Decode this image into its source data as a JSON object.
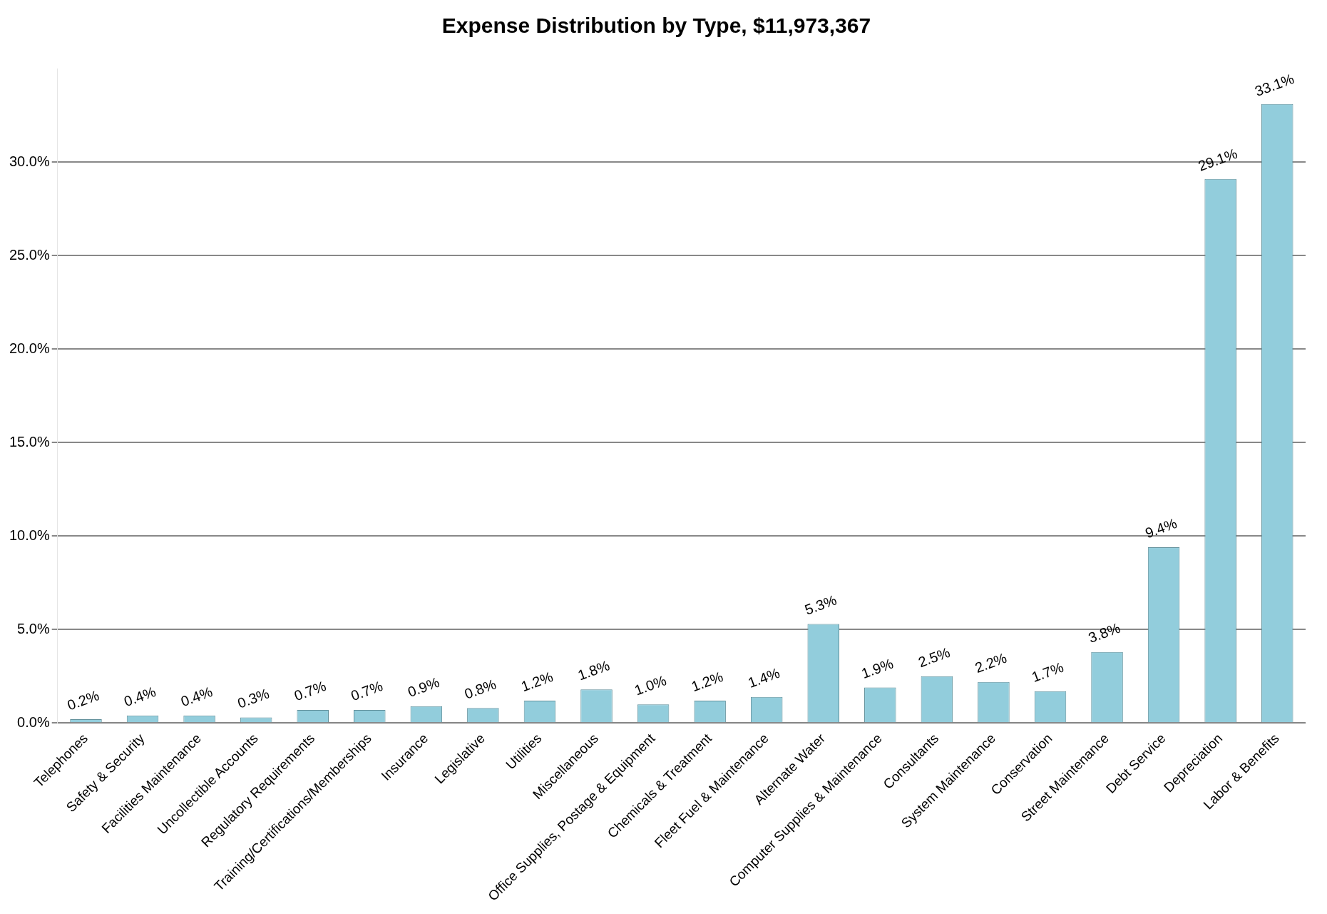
{
  "chart_data": {
    "type": "bar",
    "title": "Expense Distribution by Type, $11,973,367",
    "categories": [
      "Telephones",
      "Safety & Security",
      "Facilities Maintenance",
      "Uncollectible Accounts",
      "Regulatory Requirements",
      "Training/Certifications/Memberships",
      "Insurance",
      "Legislative",
      "Utilities",
      "Miscellaneous",
      "Office Supplies, Postage & Equipment",
      "Chemicals & Treatment",
      "Fleet Fuel & Maintenance",
      "Alternate Water",
      "Computer Supplies & Maintenance",
      "Consultants",
      "System Maintenance",
      "Conservation",
      "Street Maintenance",
      "Debt Service",
      "Depreciation",
      "Labor & Benefits"
    ],
    "values": [
      0.2,
      0.4,
      0.4,
      0.3,
      0.7,
      0.7,
      0.9,
      0.8,
      1.2,
      1.8,
      1.0,
      1.2,
      1.4,
      5.3,
      1.9,
      2.5,
      2.2,
      1.7,
      3.8,
      9.4,
      29.1,
      33.1
    ],
    "value_labels": [
      "0.2%",
      "0.4%",
      "0.4%",
      "0.3%",
      "0.7%",
      "0.7%",
      "0.9%",
      "0.8%",
      "1.2%",
      "1.8%",
      "1.0%",
      "1.2%",
      "1.4%",
      "5.3%",
      "1.9%",
      "2.5%",
      "2.2%",
      "1.7%",
      "3.8%",
      "9.4%",
      "29.1%",
      "33.1%"
    ],
    "color": "#92cddc",
    "ylim": [
      0,
      35
    ],
    "yticks": [
      {
        "value": 0,
        "label": "0.0%"
      },
      {
        "value": 5,
        "label": "5.0%"
      },
      {
        "value": 10,
        "label": "10.0%"
      },
      {
        "value": 15,
        "label": "15.0%"
      },
      {
        "value": 20,
        "label": "20.0%"
      },
      {
        "value": 25,
        "label": "25.0%"
      },
      {
        "value": 30,
        "label": "30.0%"
      }
    ],
    "grid": "y",
    "legend": false
  }
}
